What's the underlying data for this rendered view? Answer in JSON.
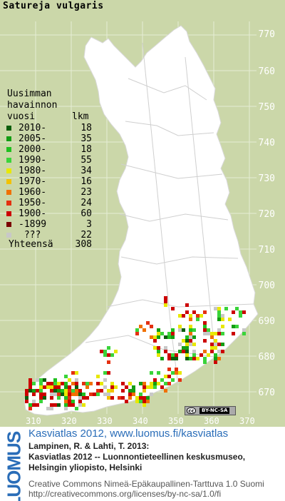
{
  "species": "Satureja vulgaris",
  "legend": {
    "title_lines": [
      "Uusimman",
      "havainnon",
      "vuosi"
    ],
    "count_header": "lkm",
    "rows": [
      {
        "label": "2010-",
        "count": "18",
        "color": "#0b5e0b"
      },
      {
        "label": "2005-",
        "count": "35",
        "color": "#139d13"
      },
      {
        "label": "2000-",
        "count": "18",
        "color": "#20c020"
      },
      {
        "label": "1990-",
        "count": "55",
        "color": "#3ad43a"
      },
      {
        "label": "1980-",
        "count": "34",
        "color": "#e8e800"
      },
      {
        "label": "1970-",
        "count": "16",
        "color": "#f2c200"
      },
      {
        "label": "1960-",
        "count": "23",
        "color": "#f07000"
      },
      {
        "label": "1950-",
        "count": "24",
        "color": "#e43010"
      },
      {
        "label": "1900-",
        "count": "60",
        "color": "#cc0000"
      },
      {
        "label": "-1899",
        "count": "3",
        "color": "#7a0000"
      },
      {
        "label": " ???",
        "count": "22",
        "color": "#c8c8c8"
      }
    ],
    "total_label": "Yhteensä",
    "total_count": "308"
  },
  "grid": {
    "y_ticks": [
      "770",
      "760",
      "750",
      "740",
      "730",
      "720",
      "710",
      "700",
      "690",
      "680",
      "670"
    ],
    "x_ticks": [
      "310",
      "320",
      "330",
      "340",
      "350",
      "360",
      "370"
    ]
  },
  "license_badge": {
    "cc": "cc",
    "text": "BY-NC-SA"
  },
  "footer": {
    "logo": "LUOMUS",
    "title": "Kasviatlas 2012, www.luomus.fi/kasviatlas",
    "citation": [
      "Lampinen, R. & Lahti, T. 2013:",
      "Kasviatlas 2012 -- Luonnontieteellinen keskusmuseo,",
      "Helsingin yliopisto, Helsinki"
    ],
    "license": [
      "Creative Commons Nimeä-Epäkaupallinen-Tarttuva 1.0 Suomi",
      "http://creativecommons.org/licenses/by-nc-sa/1.0/fi"
    ]
  }
}
